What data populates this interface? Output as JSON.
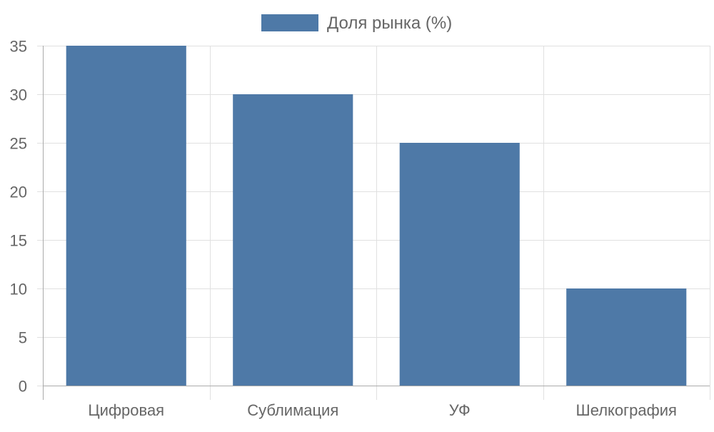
{
  "chart_data": {
    "type": "bar",
    "categories": [
      "Цифровая",
      "Сублимация",
      "УФ",
      "Шелкография"
    ],
    "series": [
      {
        "name": "Доля рынка (%)",
        "values": [
          35,
          30,
          25,
          10
        ],
        "color": "#4e79a7"
      }
    ],
    "ylim": [
      0,
      35
    ],
    "yticks": [
      0,
      5,
      10,
      15,
      20,
      25,
      30,
      35
    ],
    "grid": true,
    "legend_position": "top-center"
  },
  "colors": {
    "bar": "#4e79a7",
    "grid": "#e0e0e0",
    "axis": "#aaaaaa",
    "text": "#666666"
  }
}
